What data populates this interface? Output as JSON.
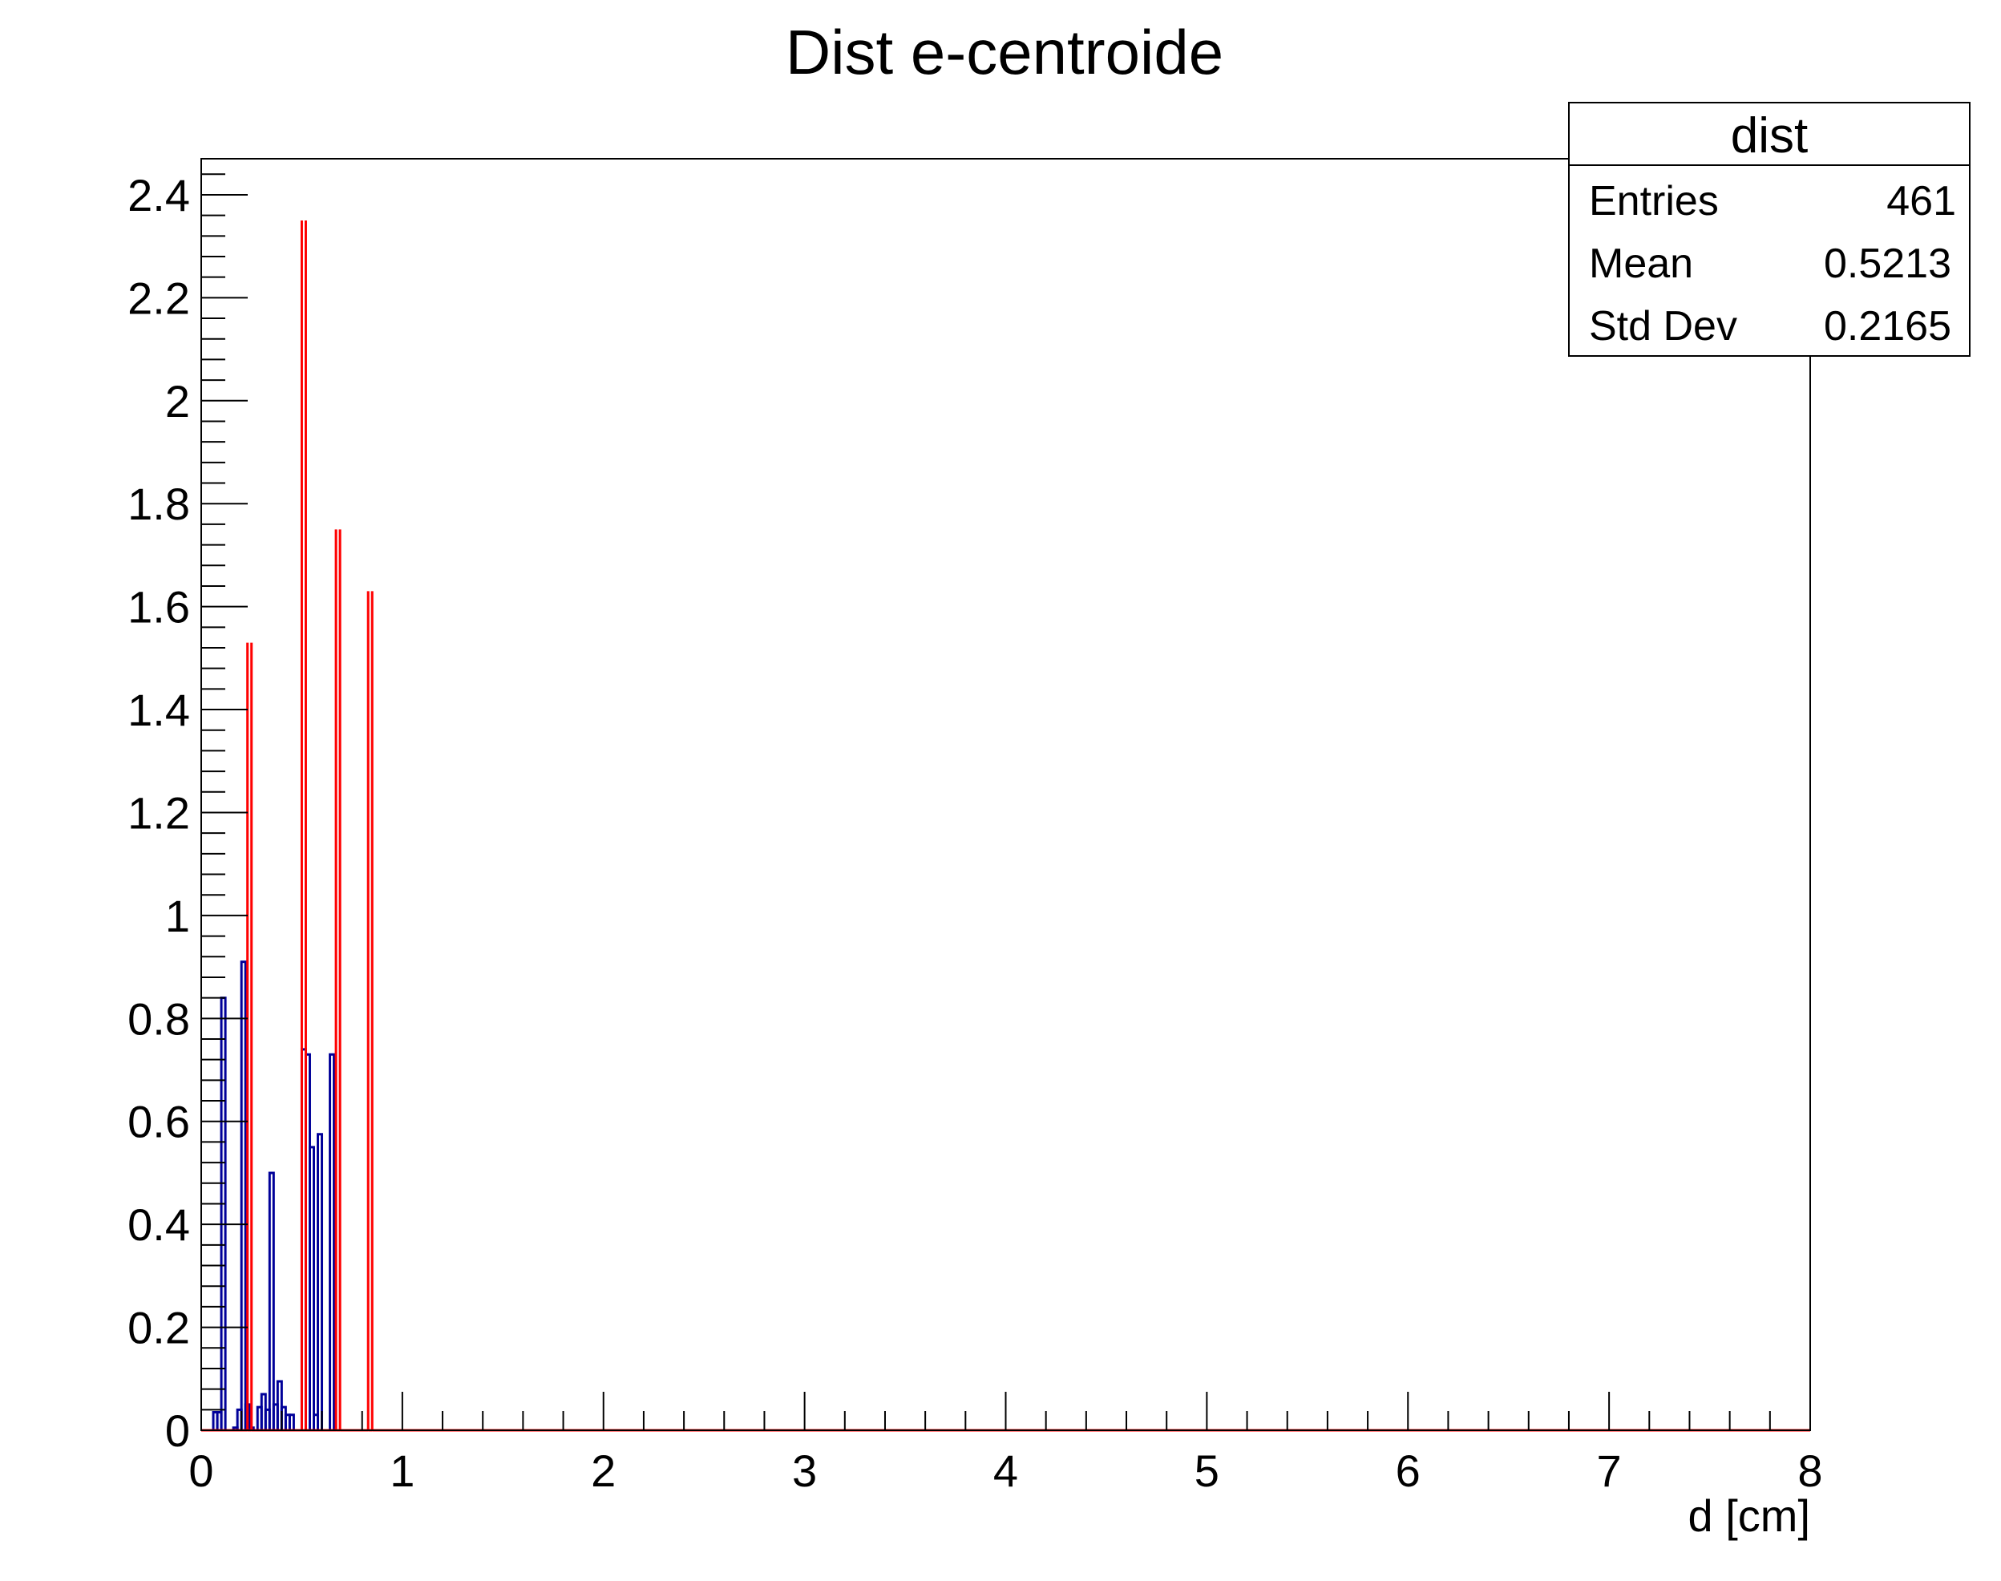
{
  "chart_data": {
    "type": "bar",
    "title": "Dist e-centroide",
    "xlabel": "d [cm]",
    "ylabel": "",
    "xlim": [
      0,
      8
    ],
    "ylim": [
      0,
      2.47
    ],
    "grid": false,
    "x_ticks": [
      "0",
      "1",
      "2",
      "3",
      "4",
      "5",
      "6",
      "7",
      "8"
    ],
    "y_ticks": [
      "0",
      "0.2",
      "0.4",
      "0.6",
      "0.8",
      "1",
      "1.2",
      "1.4",
      "1.6",
      "1.8",
      "2",
      "2.2",
      "2.4"
    ],
    "x_tick_values": [
      0,
      1,
      2,
      3,
      4,
      5,
      6,
      7,
      8
    ],
    "y_tick_values": [
      0,
      0.2,
      0.4,
      0.6,
      0.8,
      1.0,
      1.2,
      1.4,
      1.6,
      1.8,
      2.0,
      2.2,
      2.4
    ],
    "legend_position": "top-right",
    "stats": {
      "name": "dist",
      "rows": [
        {
          "label": "Entries",
          "value": "461"
        },
        {
          "label": "Mean",
          "value": "0.5213"
        },
        {
          "label": "Std Dev",
          "value": "0.2165"
        }
      ]
    },
    "series": [
      {
        "color": "#000099",
        "x": [
          0.06,
          0.08,
          0.1,
          0.14,
          0.16,
          0.18,
          0.2,
          0.22,
          0.24,
          0.26,
          0.28,
          0.3,
          0.32,
          0.34,
          0.36,
          0.38,
          0.4,
          0.42,
          0.44,
          0.46,
          0.48,
          0.5,
          0.52,
          0.54,
          0.56,
          0.58,
          0.6,
          0.62,
          0.64,
          0.66,
          0.68,
          0.7
        ],
        "values": [
          0.035,
          0.035,
          0.84,
          0.0,
          0.005,
          0.04,
          0.91,
          0.05,
          0.005,
          0.0,
          0.045,
          0.07,
          0.04,
          0.5,
          0.05,
          0.095,
          0.045,
          0.03,
          0.03,
          0.0,
          0.0,
          0.74,
          0.73,
          0.55,
          0.03,
          0.575,
          0.0,
          0.0,
          0.73,
          0.0,
          0.0,
          0.0
        ]
      },
      {
        "color": "#ff0000",
        "edges": [
          0,
          0.23,
          0.25,
          0.5,
          0.52,
          0.67,
          0.69,
          0.83,
          0.85,
          8
        ],
        "values": [
          0,
          1.53,
          0,
          2.35,
          0,
          1.75,
          0,
          1.63,
          0
        ]
      }
    ]
  }
}
